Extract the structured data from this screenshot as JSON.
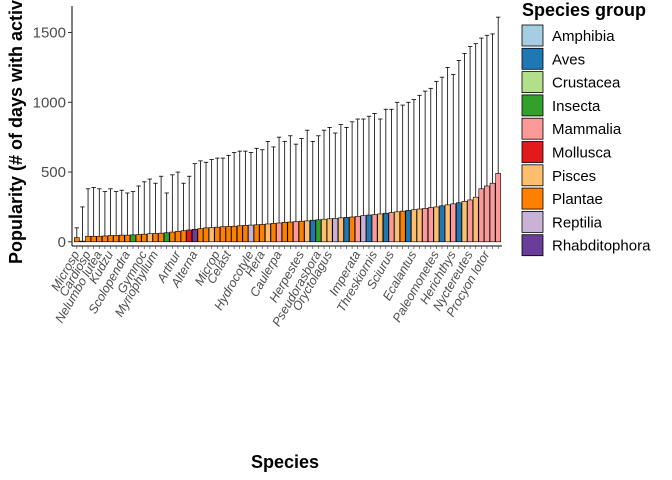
{
  "chart_data": {
    "type": "bar",
    "ylabel": "Popularity (# of days with activ",
    "xlabel": "Species",
    "ylim": [
      -30,
      1690
    ],
    "y_ticks": [
      0,
      500,
      1000,
      1500
    ],
    "grid": false,
    "legend": {
      "title": "Species group",
      "position": "right",
      "entries": [
        {
          "name": "Amphibia",
          "color": "#a6cee3"
        },
        {
          "name": "Aves",
          "color": "#1f78b4"
        },
        {
          "name": "Crustacea",
          "color": "#b2df8a"
        },
        {
          "name": "Insecta",
          "color": "#33a02c"
        },
        {
          "name": "Mammalia",
          "color": "#fb9a99"
        },
        {
          "name": "Mollusca",
          "color": "#e31a1c"
        },
        {
          "name": "Pisces",
          "color": "#fdbf6f"
        },
        {
          "name": "Plantae",
          "color": "#ff7f00"
        },
        {
          "name": "Reptilia",
          "color": "#cab2d6"
        },
        {
          "name": "Rhabditophora",
          "color": "#6a3d9a"
        }
      ]
    },
    "visible_tick_labels": [
      {
        "index": 0,
        "text": "Microsp"
      },
      {
        "index": 2,
        "text": "Cardiosp"
      },
      {
        "index": 4,
        "text": "Nelumbo lutea"
      },
      {
        "index": 6,
        "text": "Kudzu"
      },
      {
        "index": 9,
        "text": "Scolopendra"
      },
      {
        "index": 12,
        "text": "Gymnoc"
      },
      {
        "index": 14,
        "text": "Myriophyllum"
      },
      {
        "index": 18,
        "text": "Arthur"
      },
      {
        "index": 21,
        "text": "Alterna"
      },
      {
        "index": 25,
        "text": "Microp"
      },
      {
        "index": 27,
        "text": "Celast"
      },
      {
        "index": 31,
        "text": "Hydrocotyle"
      },
      {
        "index": 33,
        "text": "Hera"
      },
      {
        "index": 36,
        "text": "Caulerpa"
      },
      {
        "index": 40,
        "text": "Herpestes"
      },
      {
        "index": 43,
        "text": "Pseudorasbora"
      },
      {
        "index": 45,
        "text": "Oryctolagus"
      },
      {
        "index": 50,
        "text": "Imperata"
      },
      {
        "index": 53,
        "text": "Threskiornis"
      },
      {
        "index": 56,
        "text": "Sciurus"
      },
      {
        "index": 60,
        "text": "Ecalantus"
      },
      {
        "index": 64,
        "text": "Paleomonetes"
      },
      {
        "index": 67,
        "text": "Herichthys"
      },
      {
        "index": 70,
        "text": "Nyctereutes"
      },
      {
        "index": 73,
        "text": "Procyon lotor"
      }
    ],
    "series": [
      {
        "name": "Popularity",
        "values": [
          30,
          5,
          40,
          40,
          40,
          42,
          45,
          46,
          48,
          48,
          50,
          52,
          55,
          58,
          60,
          62,
          65,
          70,
          75,
          80,
          85,
          90,
          95,
          100,
          102,
          105,
          108,
          110,
          112,
          115,
          118,
          120,
          122,
          125,
          128,
          132,
          135,
          140,
          142,
          145,
          148,
          150,
          155,
          158,
          162,
          165,
          168,
          172,
          175,
          178,
          182,
          188,
          192,
          195,
          200,
          205,
          210,
          215,
          220,
          225,
          230,
          235,
          240,
          245,
          250,
          258,
          265,
          272,
          280,
          290,
          300,
          320,
          380,
          400,
          420,
          490
        ],
        "groups": [
          "Plantae",
          "Plantae",
          "Plantae",
          "Plantae",
          "Plantae",
          "Plantae",
          "Plantae",
          "Plantae",
          "Plantae",
          "Plantae",
          "Insecta",
          "Plantae",
          "Plantae",
          "Pisces",
          "Plantae",
          "Plantae",
          "Insecta",
          "Plantae",
          "Plantae",
          "Plantae",
          "Mollusca",
          "Rhabditophora",
          "Plantae",
          "Plantae",
          "Pisces",
          "Plantae",
          "Plantae",
          "Plantae",
          "Plantae",
          "Plantae",
          "Plantae",
          "Reptilia",
          "Plantae",
          "Plantae",
          "Pisces",
          "Plantae",
          "Mammalia",
          "Plantae",
          "Plantae",
          "Mammalia",
          "Plantae",
          "Pisces",
          "Aves",
          "Insecta",
          "Pisces",
          "Pisces",
          "Reptilia",
          "Pisces",
          "Aves",
          "Plantae",
          "Mammalia",
          "Reptilia",
          "Aves",
          "Mammalia",
          "Pisces",
          "Aves",
          "Mammalia",
          "Pisces",
          "Plantae",
          "Aves",
          "Pisces",
          "Pisces",
          "Mammalia",
          "Mammalia",
          "Pisces",
          "Aves",
          "Pisces",
          "Mammalia",
          "Aves",
          "Pisces",
          "Mammalia",
          "Pisces",
          "Mammalia",
          "Mammalia",
          "Mammalia",
          "Mammalia"
        ],
        "error_upper": [
          100,
          250,
          380,
          390,
          380,
          360,
          380,
          360,
          370,
          350,
          360,
          400,
          430,
          450,
          420,
          470,
          350,
          480,
          500,
          420,
          470,
          560,
          580,
          570,
          590,
          600,
          600,
          620,
          640,
          650,
          650,
          640,
          670,
          660,
          720,
          680,
          750,
          720,
          760,
          700,
          740,
          800,
          720,
          760,
          800,
          820,
          780,
          840,
          820,
          860,
          880,
          880,
          900,
          920,
          880,
          950,
          950,
          1000,
          980,
          1000,
          1020,
          1050,
          1080,
          1100,
          1150,
          1180,
          1250,
          1200,
          1300,
          1350,
          1400,
          1420,
          1460,
          1480,
          1490,
          1610
        ]
      }
    ]
  }
}
